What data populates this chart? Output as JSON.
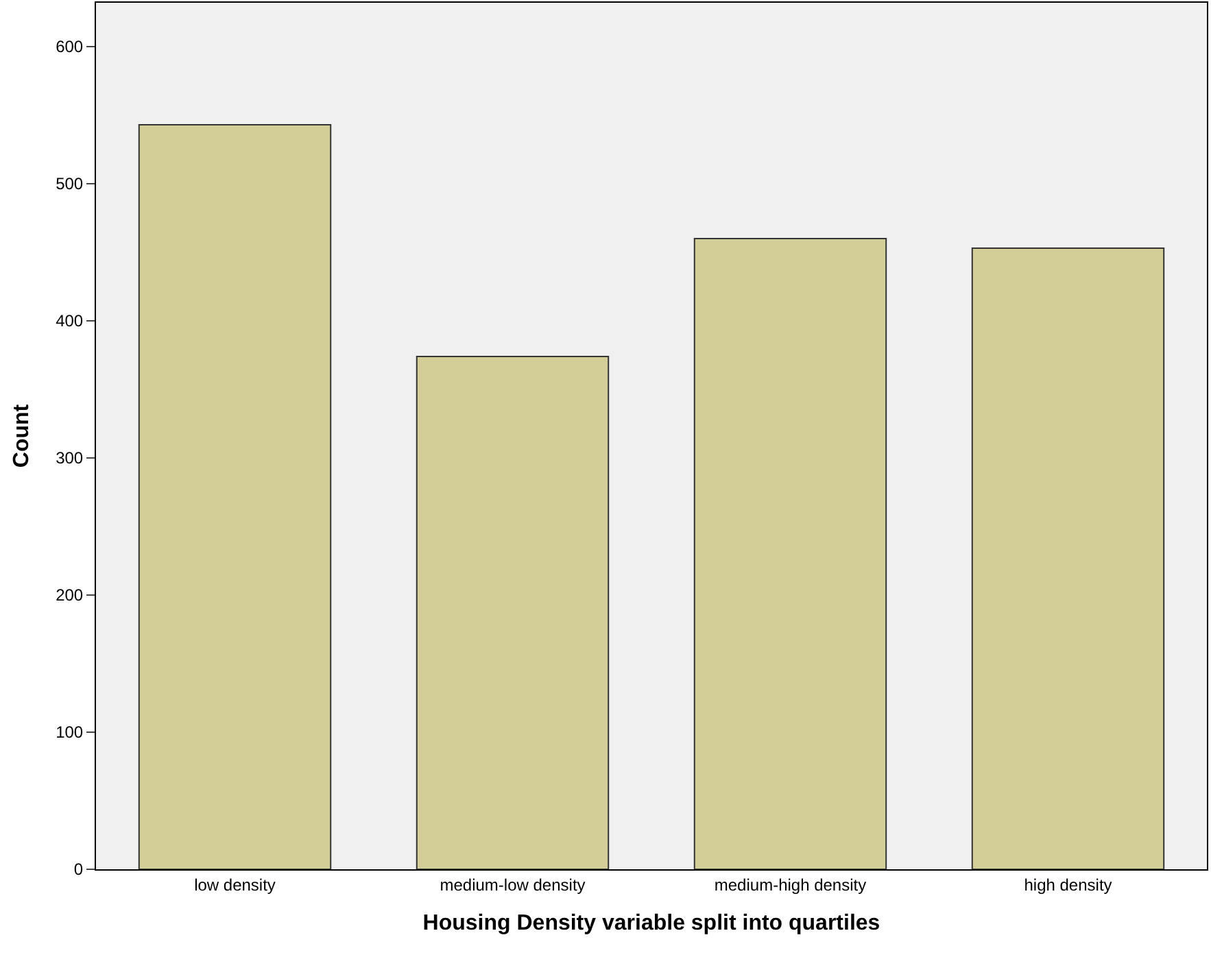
{
  "chart_data": {
    "type": "bar",
    "xlabel": "Housing Density variable split into quartiles",
    "ylabel": "Count",
    "categories": [
      "low density",
      "medium-low density",
      "medium-high density",
      "high density"
    ],
    "values": [
      543,
      374,
      460,
      453
    ],
    "color": "#d3ce97",
    "ylim": [
      0,
      632
    ],
    "yticks": [
      0,
      100,
      200,
      300,
      400,
      500,
      600
    ],
    "grid": false
  }
}
